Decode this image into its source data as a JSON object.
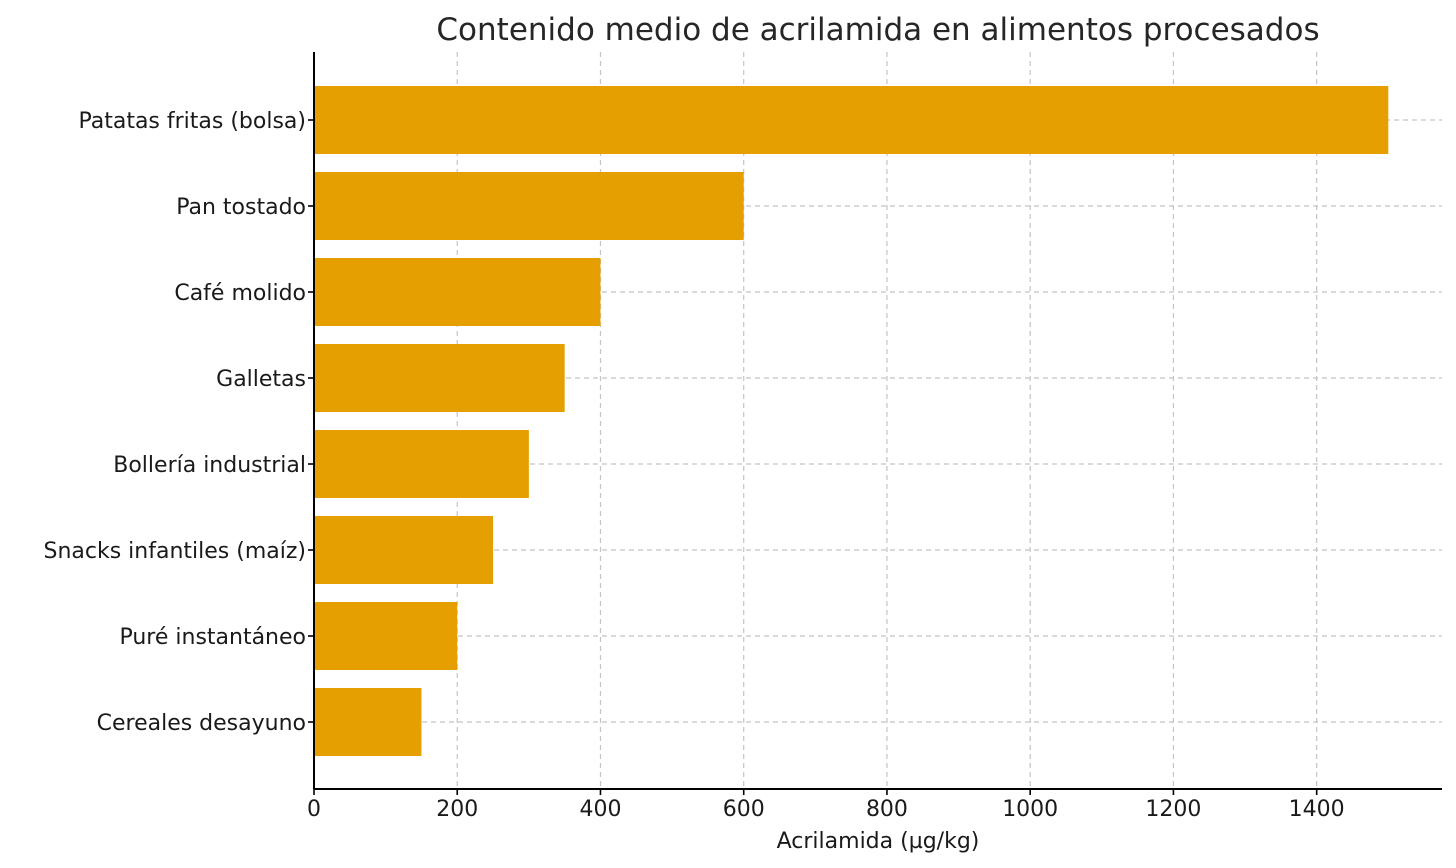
{
  "chart_data": {
    "type": "bar",
    "orientation": "horizontal",
    "title": "Contenido medio de acrilamida en alimentos procesados",
    "xlabel": "Acrilamida (µg/kg)",
    "ylabel": "",
    "categories": [
      "Patatas fritas (bolsa)",
      "Pan tostado",
      "Café molido",
      "Galletas",
      "Bollería industrial",
      "Snacks infantiles (maíz)",
      "Puré instantáneo",
      "Cereales desayuno"
    ],
    "values": [
      1500,
      600,
      400,
      350,
      300,
      250,
      200,
      150
    ],
    "xlim": [
      0,
      1575
    ],
    "xticks": [
      0,
      200,
      400,
      600,
      800,
      1000,
      1200,
      1400
    ],
    "grid": true,
    "bar_color": "#E69F00",
    "legend": "none"
  }
}
